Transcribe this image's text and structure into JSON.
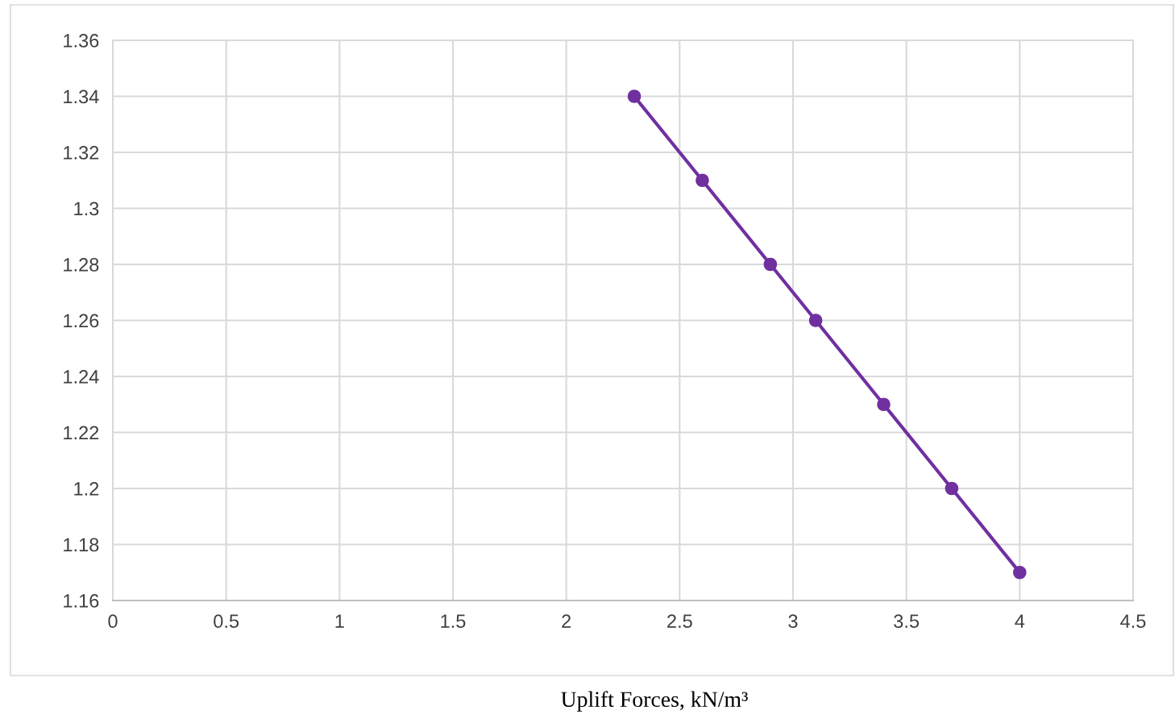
{
  "chart_data": {
    "type": "line",
    "xlabel": "Uplift Forces, kN/m³",
    "x": [
      2.3,
      2.6,
      2.9,
      3.1,
      3.4,
      3.7,
      4.0
    ],
    "series": [
      {
        "color": "#7030a0",
        "values": [
          1.34,
          1.31,
          1.28,
          1.26,
          1.23,
          1.2,
          1.17
        ]
      }
    ],
    "xlim": [
      0,
      4.5
    ],
    "xticks": [
      0,
      0.5,
      1,
      1.5,
      2,
      2.5,
      3,
      3.5,
      4,
      4.5
    ],
    "ylim": [
      1.16,
      1.36
    ],
    "yticks": [
      1.16,
      1.18,
      1.2,
      1.22,
      1.24,
      1.26,
      1.28,
      1.3,
      1.32,
      1.34,
      1.36
    ],
    "grid": true,
    "marker": "circle",
    "line_style": "solid"
  }
}
